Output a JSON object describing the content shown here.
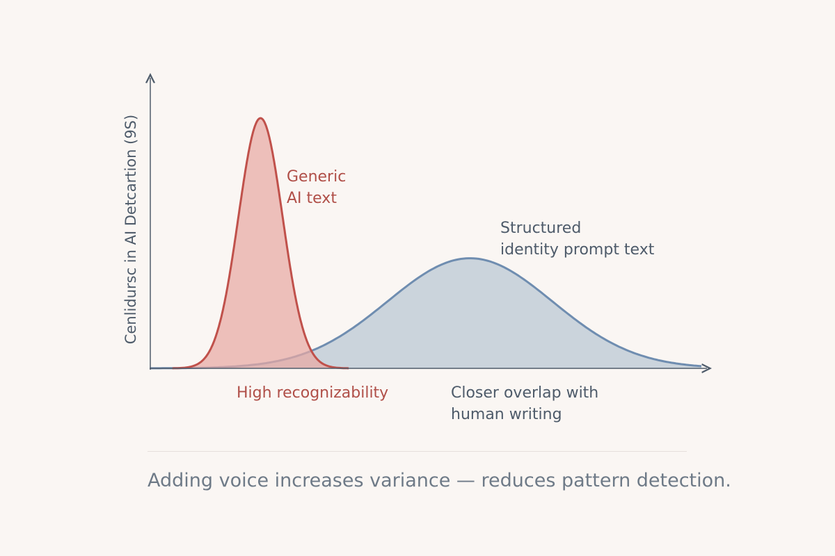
{
  "chart_data": {
    "type": "area",
    "title": "",
    "xlabel": "",
    "ylabel": "Cenlidursc in AI Detcartion (9S)",
    "grid": false,
    "legend": "none",
    "xlim": [
      0,
      100
    ],
    "ylim": [
      0,
      100
    ],
    "series": [
      {
        "name": "Generic AI text",
        "distribution": "normal",
        "mean": 20,
        "sd": 4,
        "peak": 100,
        "color": "#c0514b",
        "fill": "#e8a9a4"
      },
      {
        "name": "Structured identity prompt text",
        "distribution": "normal",
        "mean": 58,
        "sd": 15,
        "peak": 44,
        "color": "#6f8db0",
        "fill": "#b9c6d3"
      }
    ],
    "annotations": [
      {
        "text": "Generic\nAI text",
        "color": "#b04f48"
      },
      {
        "text": "Structured\nidentity prompt text",
        "color": "#4e5b6a"
      },
      {
        "text": "High recognizability",
        "color": "#b04f48"
      },
      {
        "text": "Closer overlap with\nhuman writing",
        "color": "#4e5b6a"
      }
    ]
  },
  "caption": "Adding voice increases variance — reduces pattern detection."
}
